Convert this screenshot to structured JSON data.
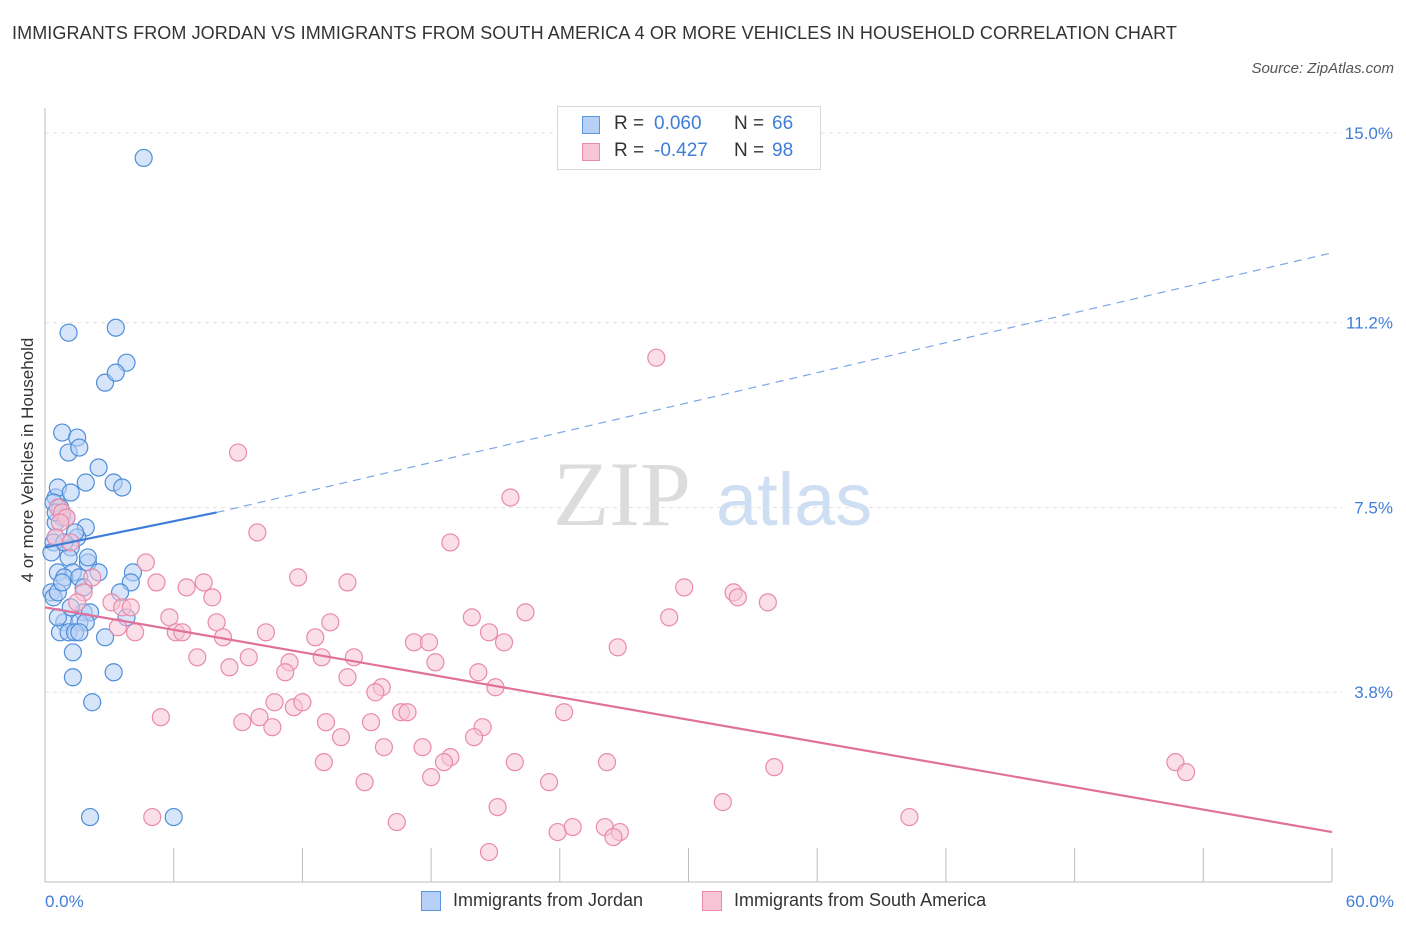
{
  "title": "IMMIGRANTS FROM JORDAN VS IMMIGRANTS FROM SOUTH AMERICA 4 OR MORE VEHICLES IN HOUSEHOLD CORRELATION CHART",
  "source": "Source: ZipAtlas.com",
  "watermark": {
    "zip": "ZIP",
    "atlas": "atlas"
  },
  "stats": [
    {
      "r_label": "R =",
      "r_value": "0.060",
      "n_label": "N =",
      "n_value": "66",
      "color": "#5b95e0",
      "fill": "#b7d0f5"
    },
    {
      "r_label": "R =",
      "r_value": "-0.427",
      "n_label": "N =",
      "n_value": "98",
      "color": "#e98aa9",
      "fill": "#f7c5d5"
    }
  ],
  "x_axis": {
    "min_label": "0.0%",
    "max_label": "60.0%"
  },
  "chart_data": {
    "type": "scatter",
    "title": "IMMIGRANTS FROM JORDAN VS IMMIGRANTS FROM SOUTH AMERICA 4 OR MORE VEHICLES IN HOUSEHOLD CORRELATION CHART",
    "xlabel": "",
    "ylabel": "4 or more Vehicles in Household",
    "xlim": [
      0,
      60
    ],
    "ylim": [
      0,
      15.5
    ],
    "y_ticks": [
      {
        "value": 3.8,
        "label": "3.8%"
      },
      {
        "value": 7.5,
        "label": "7.5%"
      },
      {
        "value": 11.2,
        "label": "11.2%"
      },
      {
        "value": 15.0,
        "label": "15.0%"
      }
    ],
    "grid": true,
    "legend_position": "bottom",
    "series": [
      {
        "name": "Immigrants from Jordan",
        "color": "#4f8ed8",
        "fill": "#b7d0f5",
        "points": [
          [
            4.6,
            14.5
          ],
          [
            1.1,
            11.0
          ],
          [
            3.3,
            11.1
          ],
          [
            3.8,
            10.4
          ],
          [
            2.8,
            10.0
          ],
          [
            3.3,
            10.2
          ],
          [
            0.8,
            9.0
          ],
          [
            1.5,
            8.9
          ],
          [
            1.1,
            8.6
          ],
          [
            1.6,
            8.7
          ],
          [
            2.5,
            8.3
          ],
          [
            1.9,
            8.0
          ],
          [
            3.2,
            8.0
          ],
          [
            3.6,
            7.9
          ],
          [
            0.5,
            7.7
          ],
          [
            0.6,
            7.9
          ],
          [
            1.2,
            7.8
          ],
          [
            0.4,
            7.6
          ],
          [
            0.7,
            7.5
          ],
          [
            0.8,
            7.3
          ],
          [
            0.5,
            7.2
          ],
          [
            1.9,
            7.1
          ],
          [
            0.5,
            6.9
          ],
          [
            1.5,
            6.9
          ],
          [
            0.4,
            6.8
          ],
          [
            1.2,
            6.7
          ],
          [
            0.3,
            6.6
          ],
          [
            1.1,
            6.5
          ],
          [
            2.0,
            6.4
          ],
          [
            1.3,
            6.2
          ],
          [
            0.6,
            6.2
          ],
          [
            0.9,
            6.1
          ],
          [
            1.6,
            6.1
          ],
          [
            2.5,
            6.2
          ],
          [
            4.1,
            6.2
          ],
          [
            4.0,
            6.0
          ],
          [
            3.5,
            5.8
          ],
          [
            0.3,
            5.8
          ],
          [
            0.4,
            5.7
          ],
          [
            0.6,
            5.8
          ],
          [
            1.8,
            5.4
          ],
          [
            2.1,
            5.4
          ],
          [
            3.8,
            5.3
          ],
          [
            0.9,
            5.2
          ],
          [
            1.6,
            5.2
          ],
          [
            1.9,
            5.2
          ],
          [
            0.7,
            5.0
          ],
          [
            1.1,
            5.0
          ],
          [
            1.4,
            5.0
          ],
          [
            1.6,
            5.0
          ],
          [
            2.8,
            4.9
          ],
          [
            1.3,
            4.6
          ],
          [
            3.2,
            4.2
          ],
          [
            1.3,
            4.1
          ],
          [
            2.2,
            3.6
          ],
          [
            2.1,
            1.3
          ],
          [
            6.0,
            1.3
          ],
          [
            0.5,
            7.4
          ],
          [
            1.0,
            7.3
          ],
          [
            0.8,
            6.0
          ],
          [
            1.2,
            5.5
          ],
          [
            2.0,
            6.5
          ],
          [
            0.6,
            5.3
          ],
          [
            1.4,
            7.0
          ],
          [
            0.9,
            6.8
          ],
          [
            1.8,
            5.9
          ]
        ]
      },
      {
        "name": "Immigrants from South America",
        "color": "#e98aa9",
        "fill": "#f7c5d5",
        "points": [
          [
            28.5,
            10.5
          ],
          [
            9.0,
            8.6
          ],
          [
            21.7,
            7.7
          ],
          [
            0.6,
            7.5
          ],
          [
            0.8,
            7.4
          ],
          [
            1.0,
            7.3
          ],
          [
            0.7,
            7.2
          ],
          [
            9.9,
            7.0
          ],
          [
            18.9,
            6.8
          ],
          [
            0.5,
            6.9
          ],
          [
            1.2,
            6.8
          ],
          [
            4.7,
            6.4
          ],
          [
            2.2,
            6.1
          ],
          [
            5.2,
            6.0
          ],
          [
            7.4,
            6.0
          ],
          [
            11.8,
            6.1
          ],
          [
            14.1,
            6.0
          ],
          [
            6.6,
            5.9
          ],
          [
            29.8,
            5.9
          ],
          [
            32.1,
            5.8
          ],
          [
            32.3,
            5.7
          ],
          [
            7.8,
            5.7
          ],
          [
            33.7,
            5.6
          ],
          [
            1.8,
            5.8
          ],
          [
            3.1,
            5.6
          ],
          [
            3.6,
            5.5
          ],
          [
            4.0,
            5.5
          ],
          [
            1.5,
            5.6
          ],
          [
            22.4,
            5.4
          ],
          [
            5.8,
            5.3
          ],
          [
            13.3,
            5.2
          ],
          [
            19.9,
            5.3
          ],
          [
            29.1,
            5.3
          ],
          [
            8.0,
            5.2
          ],
          [
            3.4,
            5.1
          ],
          [
            4.2,
            5.0
          ],
          [
            6.1,
            5.0
          ],
          [
            6.4,
            5.0
          ],
          [
            10.3,
            5.0
          ],
          [
            12.6,
            4.9
          ],
          [
            20.7,
            5.0
          ],
          [
            8.3,
            4.9
          ],
          [
            17.2,
            4.8
          ],
          [
            17.9,
            4.8
          ],
          [
            21.4,
            4.8
          ],
          [
            26.7,
            4.7
          ],
          [
            7.1,
            4.5
          ],
          [
            9.5,
            4.5
          ],
          [
            11.4,
            4.4
          ],
          [
            12.9,
            4.5
          ],
          [
            14.4,
            4.5
          ],
          [
            18.2,
            4.4
          ],
          [
            8.6,
            4.3
          ],
          [
            11.2,
            4.2
          ],
          [
            14.1,
            4.1
          ],
          [
            20.2,
            4.2
          ],
          [
            21.0,
            3.9
          ],
          [
            15.7,
            3.9
          ],
          [
            15.4,
            3.8
          ],
          [
            10.7,
            3.6
          ],
          [
            11.6,
            3.5
          ],
          [
            12.0,
            3.6
          ],
          [
            16.6,
            3.4
          ],
          [
            16.9,
            3.4
          ],
          [
            24.2,
            3.4
          ],
          [
            5.4,
            3.3
          ],
          [
            9.2,
            3.2
          ],
          [
            10.0,
            3.3
          ],
          [
            13.1,
            3.2
          ],
          [
            15.2,
            3.2
          ],
          [
            20.4,
            3.1
          ],
          [
            10.6,
            3.1
          ],
          [
            13.8,
            2.9
          ],
          [
            20.0,
            2.9
          ],
          [
            15.8,
            2.7
          ],
          [
            17.6,
            2.7
          ],
          [
            18.9,
            2.5
          ],
          [
            21.9,
            2.4
          ],
          [
            13.0,
            2.4
          ],
          [
            18.6,
            2.4
          ],
          [
            26.2,
            2.4
          ],
          [
            34.0,
            2.3
          ],
          [
            52.7,
            2.4
          ],
          [
            53.2,
            2.2
          ],
          [
            14.9,
            2.0
          ],
          [
            18.0,
            2.1
          ],
          [
            23.5,
            2.0
          ],
          [
            31.6,
            1.6
          ],
          [
            21.1,
            1.5
          ],
          [
            5.0,
            1.3
          ],
          [
            16.4,
            1.2
          ],
          [
            40.3,
            1.3
          ],
          [
            23.9,
            1.0
          ],
          [
            24.6,
            1.1
          ],
          [
            26.1,
            1.1
          ],
          [
            26.8,
            1.0
          ],
          [
            26.5,
            0.9
          ],
          [
            20.7,
            0.6
          ]
        ]
      }
    ],
    "trend_lines": [
      {
        "series": "Immigrants from Jordan",
        "x0": 0,
        "y0": 6.7,
        "x1": 8,
        "y1": 7.4,
        "dashed_to": [
          60,
          12.6
        ]
      },
      {
        "series": "Immigrants from South America",
        "x0": 0,
        "y0": 5.5,
        "x1": 60,
        "y1": 1.0
      }
    ]
  },
  "legend": [
    {
      "label": "Immigrants from Jordan"
    },
    {
      "label": "Immigrants from South America"
    }
  ]
}
